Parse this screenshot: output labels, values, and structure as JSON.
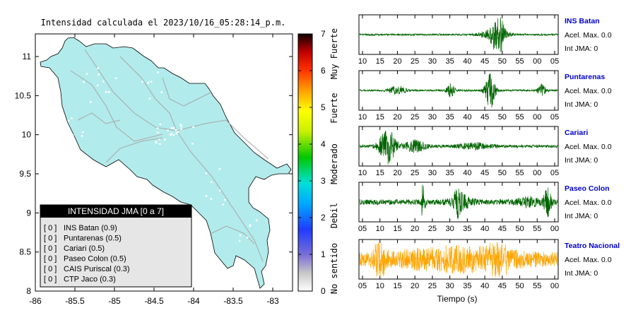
{
  "colors": {
    "land": "#b2ebeb",
    "roads": "#a7a7a7",
    "trace_normal": "#006400",
    "trace_highlight": "#ffa500",
    "station_name": "#0000cc"
  },
  "map": {
    "title": "Intensidad calculada el 2023/10/16_05:28:14_p.m.",
    "x_ticks": [
      "-86",
      "-85.5",
      "-85",
      "-84.5",
      "-84",
      "-83.5",
      "-83"
    ],
    "y_ticks": [
      "11",
      "10.5",
      "10",
      "9.5",
      "9",
      "8.5",
      "8"
    ],
    "colorbar": {
      "ticks": [
        "7",
        "6",
        "5",
        "4",
        "3",
        "2",
        "1",
        "0"
      ],
      "levels": [
        "Muy Fuerte",
        "Fuerte",
        "Moderado",
        "Debil",
        "No sentido"
      ]
    },
    "legend": {
      "header": "INTENSIDAD JMA [0 a 7]",
      "items": [
        {
          "level": "[ 0 ]",
          "name": "INS Batan (0.9)"
        },
        {
          "level": "[ 0 ]",
          "name": "Puntarenas (0.5)"
        },
        {
          "level": "[ 0 ]",
          "name": "Cariari (0.5)"
        },
        {
          "level": "[ 0 ]",
          "name": "Paseo Colon (0.5)"
        },
        {
          "level": "[ 0 ]",
          "name": "CAIS Puriscal (0.3)"
        },
        {
          "level": "[ 0 ]",
          "name": "CTP Jaco (0.3)"
        }
      ]
    }
  },
  "chart_data": {
    "type": "line",
    "xlabel": "Tiempo (s)",
    "traces": [
      {
        "name": "INS Batan",
        "accel": "Acel. Max. 0.0",
        "jma": "Int JMA: 0",
        "ticks": [
          "10",
          "15",
          "20",
          "25",
          "30",
          "35",
          "40",
          "45",
          "50",
          "55",
          "00",
          "05"
        ],
        "bursts": [
          [
            0.7,
            0.03,
            1.0
          ],
          [
            0.68,
            0.07,
            0.25
          ]
        ],
        "noise": 0.05,
        "color": "normal"
      },
      {
        "name": "Puntarenas",
        "accel": "Acel. Max. 0.0",
        "jma": "Int JMA: 0",
        "ticks": [
          "10",
          "15",
          "20",
          "25",
          "30",
          "35",
          "40",
          "45",
          "50",
          "55",
          "00",
          "05"
        ],
        "bursts": [
          [
            0.19,
            0.04,
            0.25
          ],
          [
            0.46,
            0.02,
            0.35
          ],
          [
            0.66,
            0.025,
            1.0
          ],
          [
            0.92,
            0.02,
            0.3
          ]
        ],
        "noise": 0.05,
        "color": "normal"
      },
      {
        "name": "Cariari",
        "accel": "Acel. Max. 0.0",
        "jma": "Int JMA: 0",
        "ticks": [
          "10",
          "15",
          "20",
          "25",
          "30",
          "35",
          "40",
          "45",
          "50",
          "55",
          "00",
          "05"
        ],
        "bursts": [
          [
            0.14,
            0.04,
            1.0
          ],
          [
            0.28,
            0.05,
            0.3
          ],
          [
            0.58,
            0.08,
            0.15
          ]
        ],
        "noise": 0.08,
        "color": "normal"
      },
      {
        "name": "Paseo Colon",
        "accel": "Acel. Max. 0.0",
        "jma": "Int JMA: 0",
        "ticks": [
          "05",
          "10",
          "15",
          "20",
          "25",
          "30",
          "35",
          "40",
          "45",
          "50",
          "55",
          "00"
        ],
        "bursts": [
          [
            0.32,
            0.01,
            0.9
          ],
          [
            0.5,
            0.02,
            0.6
          ],
          [
            0.51,
            0.06,
            0.3
          ],
          [
            0.95,
            0.02,
            0.7
          ],
          [
            0.85,
            0.06,
            0.2
          ]
        ],
        "noise": 0.14,
        "color": "normal"
      },
      {
        "name": "Teatro Nacional",
        "accel": "Acel. Max. 0.0",
        "jma": "Int JMA: 0",
        "ticks": [
          "05",
          "10",
          "15",
          "20",
          "25",
          "30",
          "35",
          "40",
          "45",
          "50",
          "55",
          "00"
        ],
        "bursts": [
          [
            0.1,
            0.03,
            0.8
          ],
          [
            0.5,
            0.3,
            0.45
          ],
          [
            0.7,
            0.04,
            0.8
          ]
        ],
        "noise": 0.35,
        "color": "highlight"
      }
    ]
  }
}
